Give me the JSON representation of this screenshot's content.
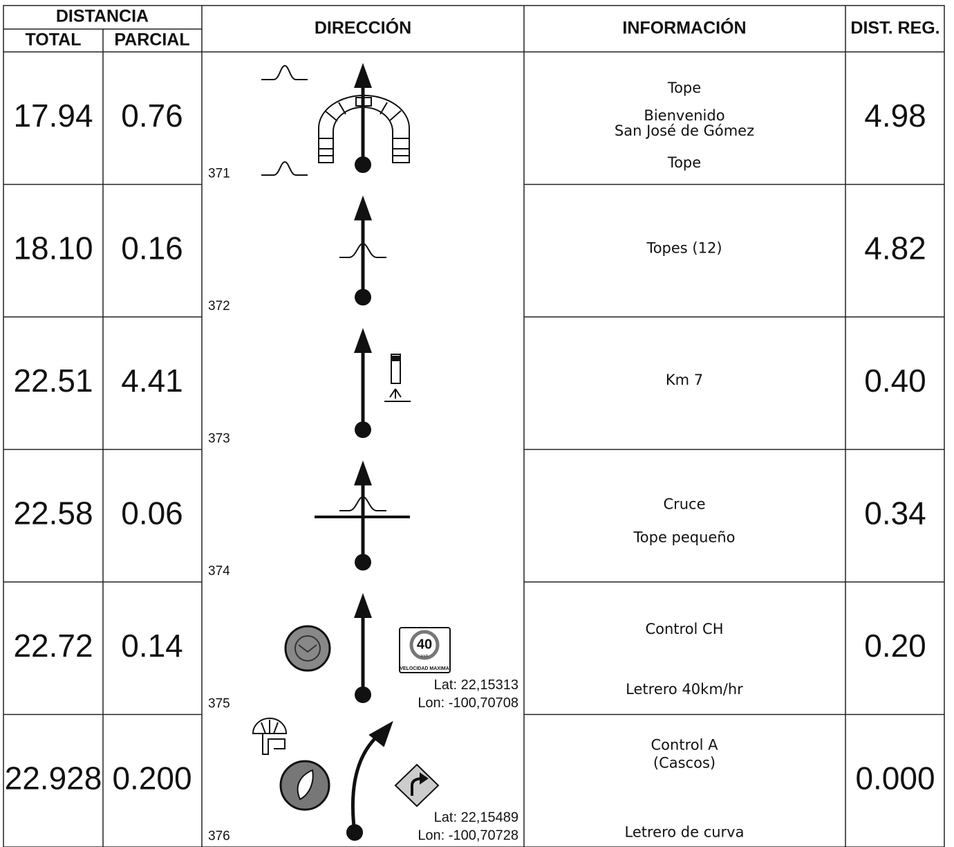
{
  "header": {
    "distancia": "DISTANCIA",
    "total": "TOTAL",
    "parcial": "PARCIAL",
    "direccion": "DIRECCIÓN",
    "informacion": "INFORMACIÓN",
    "dist_reg": "DIST. REG."
  },
  "rows": [
    {
      "total": "17.94",
      "parcial": "0.76",
      "number": "371",
      "info": [
        "Tope",
        "Bienvenido",
        "San José de Gómez",
        "Tope"
      ],
      "dist_reg": "4.98"
    },
    {
      "total": "18.10",
      "parcial": "0.16",
      "number": "372",
      "info": [
        "Topes (12)"
      ],
      "dist_reg": "4.82"
    },
    {
      "total": "22.51",
      "parcial": "4.41",
      "number": "373",
      "info": [
        "Km 7"
      ],
      "dist_reg": "0.40"
    },
    {
      "total": "22.58",
      "parcial": "0.06",
      "number": "374",
      "info": [
        "Cruce",
        "Tope pequeño"
      ],
      "dist_reg": "0.34"
    },
    {
      "total": "22.72",
      "parcial": "0.14",
      "number": "375",
      "info": [
        "Control CH",
        "Letrero 40km/hr"
      ],
      "dist_reg": "0.20",
      "lat": "Lat: 22,15313",
      "lon": "Lon: -100,70708",
      "sign": {
        "value": "40",
        "unit": "km/h",
        "caption": "VELOCIDAD MAXIMA"
      }
    },
    {
      "total": "22.928",
      "parcial": "0.200",
      "number": "376",
      "info": [
        "Control A",
        "(Cascos)",
        "Letrero de curva"
      ],
      "dist_reg": "0.000",
      "lat": "Lat: 22,15489",
      "lon": "Lon: -100,70728"
    }
  ]
}
